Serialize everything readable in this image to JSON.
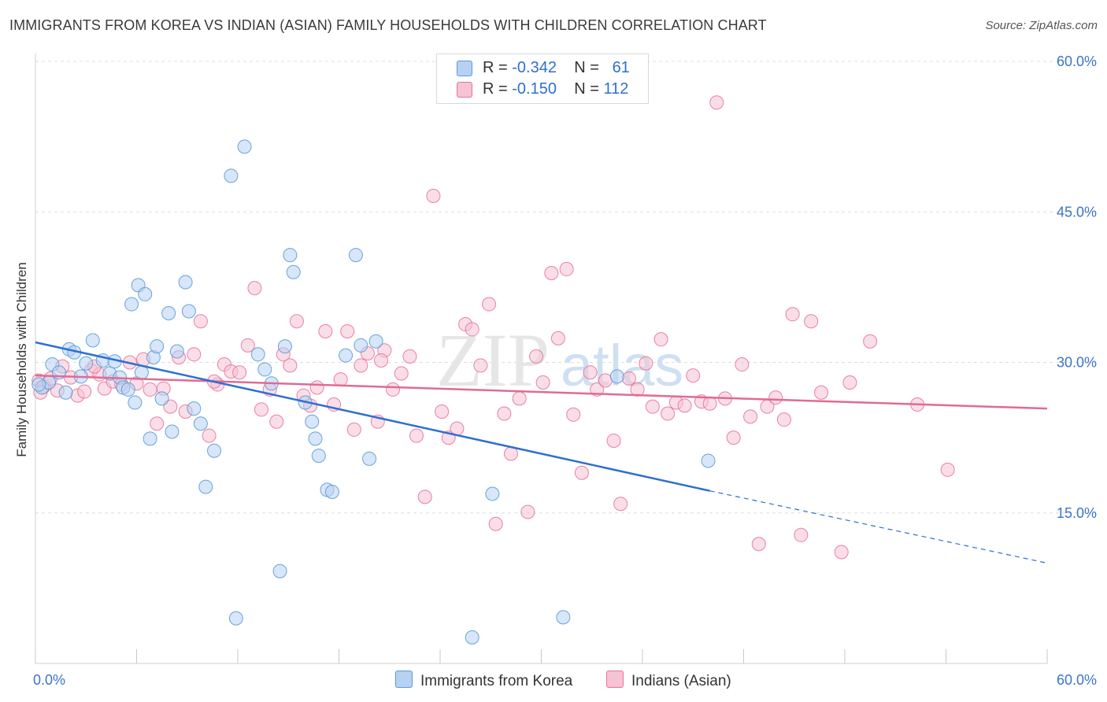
{
  "title": "IMMIGRANTS FROM KOREA VS INDIAN (ASIAN) FAMILY HOUSEHOLDS WITH CHILDREN CORRELATION CHART",
  "source": "Source: ZipAtlas.com",
  "watermark": {
    "zip": "ZIP",
    "atlas": "atlas"
  },
  "legend": {
    "korea": {
      "r_label": "R =",
      "r_value": "-0.342",
      "n_label": "N =",
      "n_value": "61"
    },
    "indian": {
      "r_label": "R =",
      "r_value": "-0.150",
      "n_label": "N =",
      "n_value": "112"
    }
  },
  "colors": {
    "korea": "#5b9bd5",
    "korea_fill": "#b7d1f2",
    "indian": "#e8739a",
    "indian_fill": "#f6c3d4",
    "korea_line": "#2e6fd1",
    "indian_line": "#e06b94",
    "axis_text": "#3b74c9"
  },
  "chart_data": {
    "type": "scatter",
    "title": "IMMIGRANTS FROM KOREA VS INDIAN (ASIAN) FAMILY HOUSEHOLDS WITH CHILDREN CORRELATION CHART",
    "xlabel": "",
    "ylabel": "Family Households with Children",
    "xlim": [
      0,
      60
    ],
    "ylim": [
      0,
      60
    ],
    "x_tick_labels": [
      "0.0%",
      "60.0%"
    ],
    "y_tick_labels": [
      "15.0%",
      "30.0%",
      "45.0%",
      "60.0%"
    ],
    "y_ticks": [
      15,
      30,
      45,
      60
    ],
    "grid": true,
    "legend_position": "top-center",
    "series": [
      {
        "name": "Immigrants from Korea",
        "color": "#5b9bd5",
        "trend": {
          "x": [
            0,
            40
          ],
          "y": [
            32.0,
            17.2
          ],
          "dashed_to": [
            60,
            10.0
          ]
        },
        "points": [
          [
            0.4,
            27.5
          ],
          [
            0.8,
            28.0
          ],
          [
            1.0,
            29.8
          ],
          [
            1.4,
            29.0
          ],
          [
            1.8,
            27.0
          ],
          [
            2.0,
            31.3
          ],
          [
            2.3,
            31.0
          ],
          [
            2.7,
            28.6
          ],
          [
            3.0,
            29.9
          ],
          [
            3.4,
            32.2
          ],
          [
            4.0,
            30.2
          ],
          [
            4.4,
            28.9
          ],
          [
            4.7,
            30.1
          ],
          [
            5.0,
            28.5
          ],
          [
            5.2,
            27.5
          ],
          [
            5.5,
            27.3
          ],
          [
            5.7,
            35.8
          ],
          [
            5.9,
            26.0
          ],
          [
            6.1,
            37.7
          ],
          [
            6.3,
            29.0
          ],
          [
            6.5,
            36.8
          ],
          [
            6.8,
            22.4
          ],
          [
            7.0,
            30.5
          ],
          [
            7.2,
            31.6
          ],
          [
            7.5,
            26.4
          ],
          [
            7.9,
            34.9
          ],
          [
            8.1,
            23.1
          ],
          [
            8.4,
            31.1
          ],
          [
            8.9,
            38.0
          ],
          [
            9.1,
            35.1
          ],
          [
            9.4,
            25.4
          ],
          [
            9.8,
            23.9
          ],
          [
            10.1,
            17.6
          ],
          [
            10.6,
            21.2
          ],
          [
            11.6,
            48.6
          ],
          [
            11.9,
            4.5
          ],
          [
            12.4,
            51.5
          ],
          [
            13.2,
            30.8
          ],
          [
            13.6,
            29.3
          ],
          [
            14.0,
            27.9
          ],
          [
            14.5,
            9.2
          ],
          [
            14.8,
            31.6
          ],
          [
            15.1,
            40.7
          ],
          [
            15.3,
            39.0
          ],
          [
            16.0,
            26.0
          ],
          [
            16.4,
            24.1
          ],
          [
            16.6,
            22.4
          ],
          [
            16.8,
            20.7
          ],
          [
            17.3,
            17.3
          ],
          [
            17.6,
            17.1
          ],
          [
            18.4,
            30.7
          ],
          [
            19.0,
            40.7
          ],
          [
            19.3,
            31.7
          ],
          [
            19.8,
            20.4
          ],
          [
            20.2,
            32.1
          ],
          [
            25.9,
            2.6
          ],
          [
            27.1,
            16.9
          ],
          [
            31.3,
            4.6
          ],
          [
            34.5,
            28.6
          ],
          [
            39.9,
            20.2
          ],
          [
            0.2,
            27.8
          ]
        ]
      },
      {
        "name": "Indians (Asian)",
        "color": "#e8739a",
        "trend": {
          "x": [
            0,
            60
          ],
          "y": [
            28.7,
            25.4
          ]
        },
        "points": [
          [
            0.2,
            28.2
          ],
          [
            0.5,
            27.6
          ],
          [
            0.9,
            28.4
          ],
          [
            1.3,
            27.2
          ],
          [
            1.6,
            29.6
          ],
          [
            2.1,
            28.5
          ],
          [
            2.5,
            26.7
          ],
          [
            2.9,
            27.1
          ],
          [
            3.3,
            29.2
          ],
          [
            3.8,
            28.8
          ],
          [
            4.1,
            27.4
          ],
          [
            4.6,
            28.1
          ],
          [
            5.1,
            27.8
          ],
          [
            5.6,
            30.0
          ],
          [
            6.0,
            27.9
          ],
          [
            6.4,
            30.3
          ],
          [
            6.8,
            27.3
          ],
          [
            7.2,
            23.9
          ],
          [
            7.6,
            27.4
          ],
          [
            8.0,
            25.6
          ],
          [
            8.5,
            30.5
          ],
          [
            8.9,
            25.1
          ],
          [
            9.4,
            30.8
          ],
          [
            9.8,
            34.1
          ],
          [
            10.3,
            22.7
          ],
          [
            10.8,
            27.8
          ],
          [
            11.2,
            29.8
          ],
          [
            11.6,
            29.1
          ],
          [
            12.1,
            29.0
          ],
          [
            12.6,
            31.7
          ],
          [
            13.0,
            37.4
          ],
          [
            13.4,
            25.3
          ],
          [
            13.9,
            27.3
          ],
          [
            14.3,
            24.1
          ],
          [
            14.7,
            30.8
          ],
          [
            15.1,
            29.7
          ],
          [
            15.5,
            34.1
          ],
          [
            15.9,
            26.7
          ],
          [
            16.3,
            25.7
          ],
          [
            16.7,
            27.5
          ],
          [
            17.2,
            33.1
          ],
          [
            17.7,
            25.8
          ],
          [
            18.1,
            28.3
          ],
          [
            18.5,
            33.1
          ],
          [
            18.9,
            23.3
          ],
          [
            19.3,
            29.7
          ],
          [
            19.7,
            30.9
          ],
          [
            20.3,
            24.1
          ],
          [
            20.7,
            31.2
          ],
          [
            21.2,
            27.3
          ],
          [
            21.7,
            28.9
          ],
          [
            22.2,
            30.6
          ],
          [
            22.6,
            22.7
          ],
          [
            23.1,
            16.6
          ],
          [
            23.6,
            46.6
          ],
          [
            24.1,
            25.1
          ],
          [
            24.5,
            22.5
          ],
          [
            25.0,
            23.4
          ],
          [
            25.5,
            33.8
          ],
          [
            25.9,
            33.3
          ],
          [
            26.4,
            29.7
          ],
          [
            26.9,
            35.8
          ],
          [
            27.3,
            13.9
          ],
          [
            27.8,
            24.9
          ],
          [
            28.2,
            20.9
          ],
          [
            28.7,
            26.4
          ],
          [
            29.2,
            15.1
          ],
          [
            29.7,
            30.6
          ],
          [
            30.1,
            28.0
          ],
          [
            30.6,
            38.9
          ],
          [
            31.0,
            32.4
          ],
          [
            31.5,
            39.3
          ],
          [
            31.9,
            24.8
          ],
          [
            32.4,
            19.0
          ],
          [
            32.9,
            29.0
          ],
          [
            33.3,
            27.3
          ],
          [
            33.8,
            28.2
          ],
          [
            34.3,
            22.2
          ],
          [
            34.7,
            15.9
          ],
          [
            35.2,
            28.4
          ],
          [
            35.7,
            27.3
          ],
          [
            36.2,
            29.9
          ],
          [
            36.6,
            25.6
          ],
          [
            37.1,
            32.3
          ],
          [
            37.5,
            24.9
          ],
          [
            38.0,
            26.0
          ],
          [
            38.5,
            25.7
          ],
          [
            39.0,
            28.7
          ],
          [
            39.5,
            26.1
          ],
          [
            40.0,
            25.9
          ],
          [
            40.4,
            55.9
          ],
          [
            40.9,
            26.4
          ],
          [
            41.4,
            22.5
          ],
          [
            41.9,
            29.8
          ],
          [
            42.4,
            24.6
          ],
          [
            42.9,
            11.9
          ],
          [
            43.4,
            25.6
          ],
          [
            43.9,
            26.5
          ],
          [
            44.4,
            24.3
          ],
          [
            44.9,
            34.8
          ],
          [
            45.4,
            12.8
          ],
          [
            46.0,
            34.1
          ],
          [
            46.6,
            27.0
          ],
          [
            47.8,
            11.1
          ],
          [
            48.3,
            28.0
          ],
          [
            49.5,
            32.1
          ],
          [
            52.3,
            25.8
          ],
          [
            54.1,
            19.3
          ],
          [
            3.5,
            29.6
          ],
          [
            10.6,
            28.1
          ],
          [
            20.5,
            30.2
          ],
          [
            0.3,
            27.0
          ]
        ]
      }
    ]
  },
  "bottom_legend": {
    "korea": "Immigrants from Korea",
    "indian": "Indians (Asian)"
  }
}
